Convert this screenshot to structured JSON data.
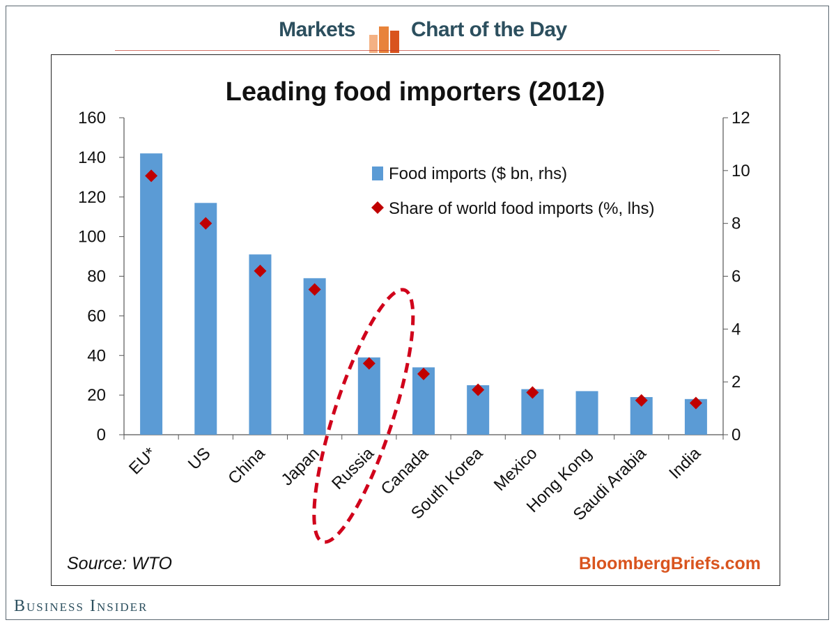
{
  "header": {
    "left_label": "Markets",
    "right_label": "Chart of the Day",
    "accent_color": "#e8833a",
    "text_color": "#2c4f5e",
    "icon": "bar-chart-icon"
  },
  "footer": {
    "brand": "Business Insider",
    "source": "Source: WTO",
    "site": "BloombergBriefs.com",
    "site_color": "#d9541e"
  },
  "chart_data": {
    "type": "bar",
    "title": "Leading food importers (2012)",
    "categories": [
      "EU*",
      "US",
      "China",
      "Japan",
      "Russia",
      "Canada",
      "South Korea",
      "Mexico",
      "Hong Kong",
      "Saudi Arabia",
      "India"
    ],
    "series": [
      {
        "name": "Food imports ($ bn, rhs)",
        "kind": "bar",
        "axis": "left",
        "color": "#5b9bd5",
        "values": [
          142,
          117,
          91,
          79,
          39,
          34,
          25,
          23,
          22,
          19,
          18
        ]
      },
      {
        "name": "Share of world food imports (%, lhs)",
        "kind": "marker",
        "marker": "diamond",
        "axis": "right",
        "color": "#c00000",
        "values": [
          9.8,
          8.0,
          6.2,
          5.5,
          2.7,
          2.3,
          1.7,
          1.6,
          null,
          1.3,
          1.2
        ]
      }
    ],
    "left_axis": {
      "min": 0,
      "max": 160,
      "ticks": [
        0,
        20,
        40,
        60,
        80,
        100,
        120,
        140,
        160
      ]
    },
    "right_axis": {
      "min": 0,
      "max": 12,
      "ticks": [
        0,
        2,
        4,
        6,
        8,
        10,
        12
      ]
    },
    "highlight": {
      "category": "Russia",
      "style": "dashed-ellipse",
      "color": "#d0021b"
    },
    "legend_position": "top-right"
  }
}
